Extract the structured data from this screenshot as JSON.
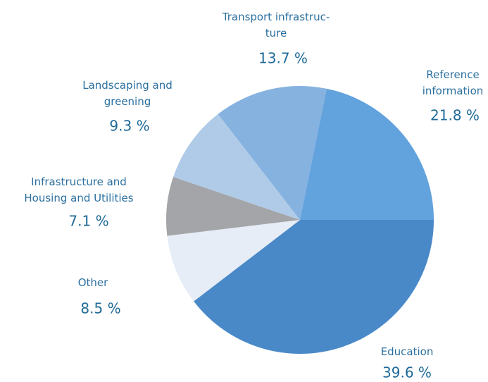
{
  "chart_data": {
    "type": "pie",
    "categories": [
      "Education",
      "Other",
      "Infrastructure and\nHousing and Utilities",
      "Landscaping and\ngreening",
      "Transport infrastruc-\nture",
      "Reference\ninformation"
    ],
    "values": [
      39.6,
      8.5,
      7.1,
      9.3,
      13.7,
      21.8
    ],
    "value_labels": [
      "39.6 %",
      "8.5 %",
      "7.1 %",
      "9.3 %",
      "13.7 %",
      "21.8 %"
    ],
    "colors": [
      "#4a89c8",
      "#e6edf7",
      "#a3a5a8",
      "#b0cbe8",
      "#86b2e0",
      "#62a2dd"
    ]
  }
}
